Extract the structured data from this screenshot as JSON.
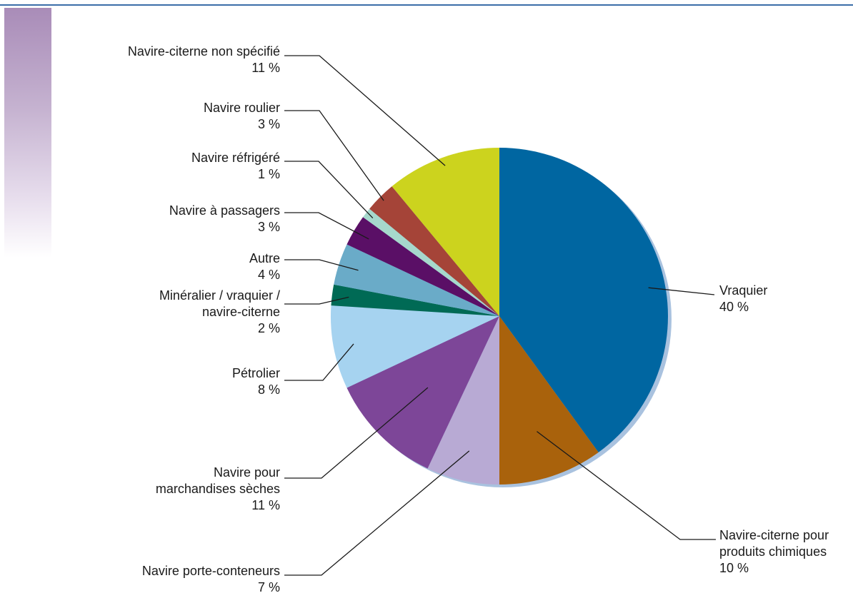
{
  "chart_data": {
    "type": "pie",
    "title": "",
    "start_angle_deg": 0,
    "direction": "clockwise",
    "slices": [
      {
        "label": "Vraquier",
        "value": 40,
        "value_label": "40 %",
        "color": "#0066a1"
      },
      {
        "label": "Navire-citerne pour produits chimiques",
        "value": 10,
        "value_label": "10 %",
        "color": "#a9620c"
      },
      {
        "label": "Navire porte-conteneurs",
        "value": 7,
        "value_label": "7 %",
        "color": "#b8aad4"
      },
      {
        "label": "Navire pour marchandises sèches",
        "value": 11,
        "value_label": "11 %",
        "color": "#7d4698"
      },
      {
        "label": "Pétrolier",
        "value": 8,
        "value_label": "8 %",
        "color": "#a6d3f0"
      },
      {
        "label": "Minéralier / vraquier / navire-citerne",
        "value": 2,
        "value_label": "2 %",
        "color": "#006a55"
      },
      {
        "label": "Autre",
        "value": 4,
        "value_label": "4 %",
        "color": "#6aabc8"
      },
      {
        "label": "Navire à passagers",
        "value": 3,
        "value_label": "3 %",
        "color": "#5a0f66"
      },
      {
        "label": "Navire réfrigéré",
        "value": 1,
        "value_label": "1 %",
        "color": "#a6d8cc"
      },
      {
        "label": "Navire roulier",
        "value": 3,
        "value_label": "3 %",
        "color": "#a54438"
      },
      {
        "label": "Navire-citerne non spécifié",
        "value": 11,
        "value_label": "11 %",
        "color": "#ccd31e"
      }
    ],
    "shadow_color": "#a9c2df",
    "leader_color": "#1a1a1a"
  },
  "theme": {
    "rule_color": "#3b6ea8",
    "band_color": "#a98cb8"
  }
}
